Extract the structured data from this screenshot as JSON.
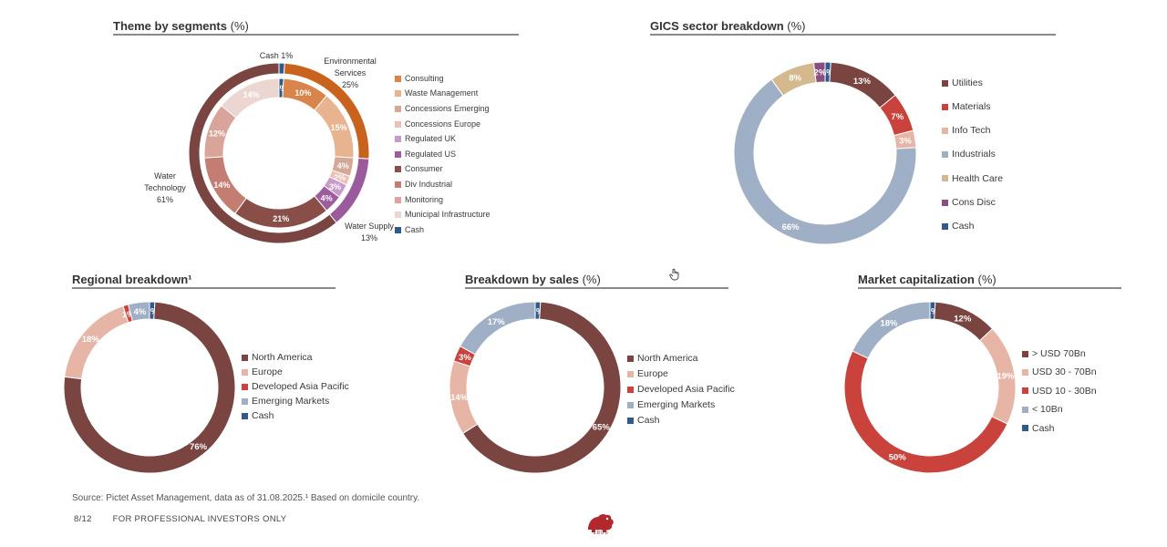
{
  "panels": {
    "theme": {
      "title": "Theme by segments",
      "unit": "(%)"
    },
    "gics": {
      "title": "GICS sector breakdown",
      "unit": "(%)"
    },
    "regional": {
      "title": "Regional breakdown¹",
      "unit": ""
    },
    "sales": {
      "title": "Breakdown by sales",
      "unit": "(%)"
    },
    "mcap": {
      "title": "Market capitalization",
      "unit": "(%)"
    }
  },
  "chart_data": [
    {
      "id": "theme",
      "type": "pie",
      "title": "Theme by segments (%)",
      "outer_ring": {
        "slices": [
          {
            "name": "Cash",
            "label": "Cash 1%",
            "value": 1,
            "color": "#2f5b8c"
          },
          {
            "name": "Environmental Services",
            "label_lines": [
              "Environmental",
              "Services",
              "25%"
            ],
            "value": 25,
            "color": "#c9621c"
          },
          {
            "name": "Water Supply",
            "label_lines": [
              "Water Supply",
              "13%"
            ],
            "value": 13,
            "color": "#9b5a9b"
          },
          {
            "name": "Water Technology",
            "label_lines": [
              "Water",
              "Technology",
              "61%"
            ],
            "value": 61,
            "color": "#7a4440"
          }
        ]
      },
      "inner_ring": {
        "slices": [
          {
            "name": "Cash",
            "value": 1,
            "label": "1%",
            "color": "#2f5b8c"
          },
          {
            "name": "Consulting",
            "value": 10,
            "label": "10%",
            "color": "#d9844a"
          },
          {
            "name": "Waste Management",
            "value": 15,
            "label": "15%",
            "color": "#e8b48f"
          },
          {
            "name": "Concessions Emerging",
            "value": 4,
            "label": "4%",
            "color": "#d6a796"
          },
          {
            "name": "Concessions Europe",
            "value": 2,
            "label": "2%",
            "color": "#eebfb3"
          },
          {
            "name": "Regulated UK",
            "value": 3,
            "label": "3%",
            "color": "#c79ac8"
          },
          {
            "name": "Regulated US",
            "value": 4,
            "label": "4%",
            "color": "#9d5c9c"
          },
          {
            "name": "Consumer",
            "value": 21,
            "label": "21%",
            "color": "#8a4e48"
          },
          {
            "name": "Div Industrial",
            "value": 14,
            "label": "14%",
            "color": "#c47d73"
          },
          {
            "name": "Monitoring",
            "value": 12,
            "label": "12%",
            "color": "#d9a59a"
          },
          {
            "name": "Municipal Infrastructure",
            "value": 14,
            "label": "14%",
            "color": "#ecd6d2"
          }
        ]
      },
      "legend": [
        "Consulting",
        "Waste Management",
        "Concessions Emerging",
        "Concessions Europe",
        "Regulated UK",
        "Regulated US",
        "Consumer",
        "Div Industrial",
        "Monitoring",
        "Municipal Infrastructure",
        "Cash"
      ],
      "legend_colors": [
        "#d9844a",
        "#e8b48f",
        "#d6a796",
        "#eebfb3",
        "#c79ac8",
        "#9d5c9c",
        "#8a4e48",
        "#c47d73",
        "#d9a59a",
        "#ecd6d2",
        "#2f5b8c"
      ]
    },
    {
      "id": "gics",
      "type": "pie",
      "title": "GICS sector breakdown (%)",
      "slices": [
        {
          "name": "Cash",
          "value": 1,
          "label": "1%",
          "color": "#2f5b8c"
        },
        {
          "name": "Utilities",
          "value": 13,
          "label": "13%",
          "color": "#7a4440"
        },
        {
          "name": "Materials",
          "value": 7,
          "label": "7%",
          "color": "#c9423b"
        },
        {
          "name": "Info Tech",
          "value": 3,
          "label": "3%",
          "color": "#e6b5a6"
        },
        {
          "name": "Industrials",
          "value": 66,
          "label": "66%",
          "color": "#9fb0c6"
        },
        {
          "name": "Health Care",
          "value": 8,
          "label": "8%",
          "color": "#d4b98e"
        },
        {
          "name": "Cons Disc",
          "value": 2,
          "label": "2%",
          "color": "#8a4f80"
        }
      ],
      "legend": [
        "Utilities",
        "Materials",
        "Info Tech",
        "Industrials",
        "Health Care",
        "Cons Disc",
        "Cash"
      ],
      "legend_colors": [
        "#7a4440",
        "#c9423b",
        "#e6b5a6",
        "#9fb0c6",
        "#d4b98e",
        "#8a4f80",
        "#2f5b8c"
      ]
    },
    {
      "id": "regional",
      "type": "pie",
      "title": "Regional breakdown¹",
      "slices": [
        {
          "name": "Cash",
          "value": 1,
          "label": "1%",
          "color": "#2f5b8c"
        },
        {
          "name": "North America",
          "value": 76,
          "label": "76%",
          "color": "#7a4440"
        },
        {
          "name": "Europe",
          "value": 18,
          "label": "18%",
          "color": "#e6b5a6"
        },
        {
          "name": "Developed Asia Pacific",
          "value": 1,
          "label": "1%",
          "color": "#c9423b"
        },
        {
          "name": "Emerging Markets",
          "value": 4,
          "label": "4%",
          "color": "#9fb0c6"
        }
      ],
      "legend": [
        "North America",
        "Europe",
        "Developed Asia Pacific",
        "Emerging Markets",
        "Cash"
      ],
      "legend_colors": [
        "#7a4440",
        "#e6b5a6",
        "#c9423b",
        "#9fb0c6",
        "#2f5b8c"
      ]
    },
    {
      "id": "sales",
      "type": "pie",
      "title": "Breakdown by sales (%)",
      "slices": [
        {
          "name": "Cash",
          "value": 1,
          "label": "1%",
          "color": "#2f5b8c"
        },
        {
          "name": "North America",
          "value": 65,
          "label": "65%",
          "color": "#7a4440"
        },
        {
          "name": "Europe",
          "value": 14,
          "label": "14%",
          "color": "#e6b5a6"
        },
        {
          "name": "Developed Asia Pacific",
          "value": 3,
          "label": "3%",
          "color": "#c9423b"
        },
        {
          "name": "Emerging Markets",
          "value": 17,
          "label": "17%",
          "color": "#9fb0c6"
        }
      ],
      "legend": [
        "North America",
        "Europe",
        "Developed Asia Pacific",
        "Emerging Markets",
        "Cash"
      ],
      "legend_colors": [
        "#7a4440",
        "#e6b5a6",
        "#c9423b",
        "#9fb0c6",
        "#2f5b8c"
      ]
    },
    {
      "id": "mcap",
      "type": "pie",
      "title": "Market capitalization (%)",
      "slices": [
        {
          "name": "Cash",
          "value": 1,
          "label": "1%",
          "color": "#2f5b8c"
        },
        {
          "name": "> USD 70Bn",
          "value": 12,
          "label": "12%",
          "color": "#7a4440"
        },
        {
          "name": "USD 30 - 70Bn",
          "value": 19,
          "label": "19%",
          "color": "#e6b5a6"
        },
        {
          "name": "USD 10 - 30Bn",
          "value": 50,
          "label": "50%",
          "color": "#c9423b"
        },
        {
          "name": "< 10Bn",
          "value": 18,
          "label": "18%",
          "color": "#9fb0c6"
        }
      ],
      "legend": [
        "> USD 70Bn",
        "USD 30 - 70Bn",
        "USD 10 - 30Bn",
        "< 10Bn",
        "Cash"
      ],
      "legend_colors": [
        "#7a4440",
        "#e6b5a6",
        "#c9423b",
        "#9fb0c6",
        "#2f5b8c"
      ]
    }
  ],
  "footer": {
    "source": "Source: Pictet Asset Management, data as of 31.08.2025.¹ Based on domicile country.",
    "page": "8/12",
    "disclaimer": "FOR PROFESSIONAL INVESTORS ONLY",
    "logo_year": "1805"
  }
}
